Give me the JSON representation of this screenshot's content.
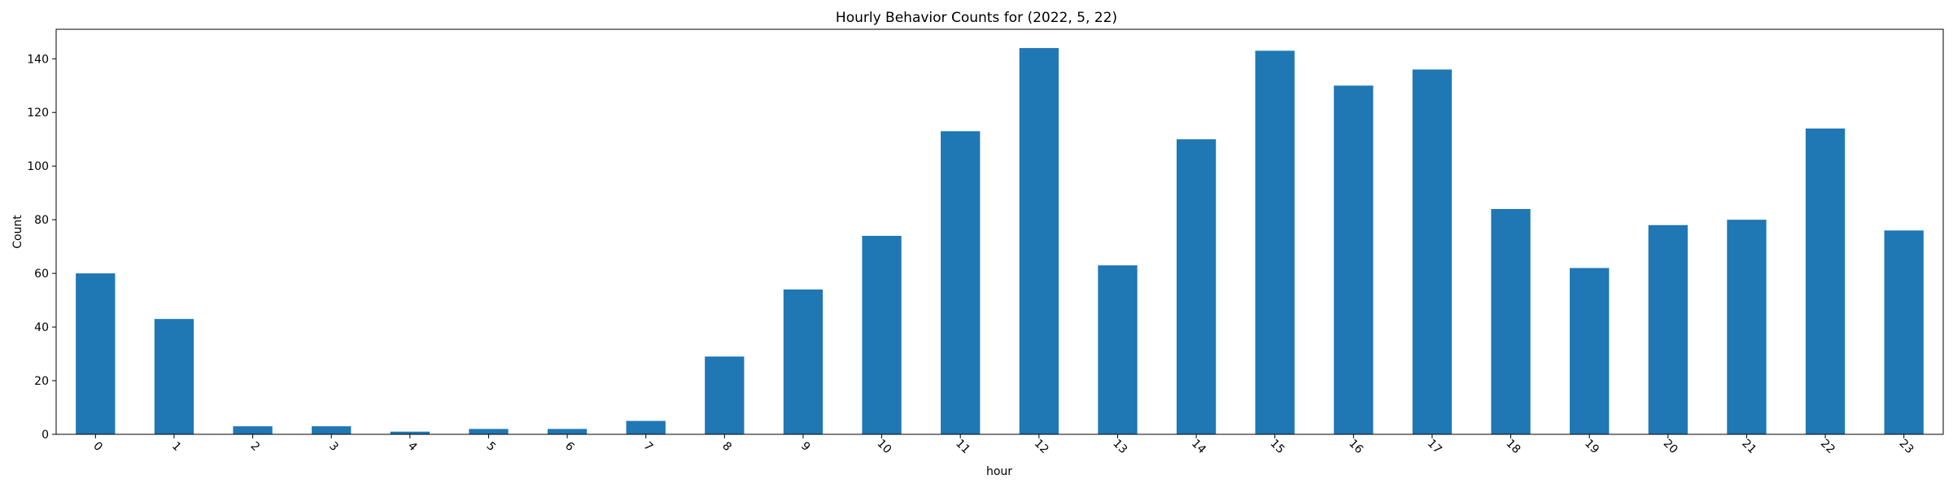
{
  "chart_data": {
    "type": "bar",
    "title": "Hourly Behavior Counts for (2022, 5, 22)",
    "xlabel": "hour",
    "ylabel": "Count",
    "categories": [
      "0",
      "1",
      "2",
      "3",
      "4",
      "5",
      "6",
      "7",
      "8",
      "9",
      "10",
      "11",
      "12",
      "13",
      "14",
      "15",
      "16",
      "17",
      "18",
      "19",
      "20",
      "21",
      "22",
      "23"
    ],
    "values": [
      60,
      43,
      3,
      3,
      1,
      2,
      2,
      5,
      29,
      54,
      74,
      113,
      144,
      63,
      110,
      143,
      130,
      136,
      84,
      62,
      78,
      80,
      114,
      76
    ],
    "ylim": [
      0,
      151
    ],
    "yticks": [
      0,
      20,
      40,
      60,
      80,
      100,
      120,
      140
    ],
    "bar_color": "#1f77b4",
    "grid": false,
    "legend": "none",
    "xtick_rotation_deg": 45
  }
}
